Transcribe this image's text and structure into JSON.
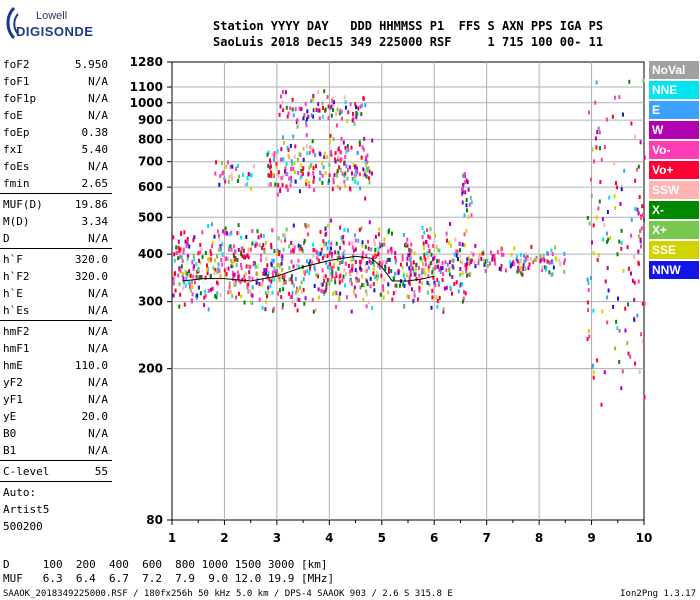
{
  "logo": {
    "line1": "Lowell",
    "line2": "DIGISONDE"
  },
  "header": {
    "line1": "Station YYYY DAY   DDD HHMMSS P1  FFS S AXN PPS IGA PS",
    "line2": "SaoLuis 2018 Dec15 349 225000 RSF     1 715 100 00- 11"
  },
  "params": {
    "group1": [
      {
        "k": "foF2",
        "v": "5.950"
      },
      {
        "k": "foF1",
        "v": "N/A"
      },
      {
        "k": "foF1p",
        "v": "N/A"
      },
      {
        "k": "foE",
        "v": "N/A"
      },
      {
        "k": "foEp",
        "v": "0.38"
      },
      {
        "k": "fxI",
        "v": "5.40"
      },
      {
        "k": "foEs",
        "v": "N/A"
      },
      {
        "k": "fmin",
        "v": "2.65"
      }
    ],
    "group2": [
      {
        "k": "MUF(D)",
        "v": "19.86"
      },
      {
        "k": "M(D)",
        "v": "3.34"
      },
      {
        "k": "D",
        "v": "N/A"
      }
    ],
    "group3": [
      {
        "k": "h`F",
        "v": "320.0"
      },
      {
        "k": "h`F2",
        "v": "320.0"
      },
      {
        "k": "h`E",
        "v": "N/A"
      },
      {
        "k": "h`Es",
        "v": "N/A"
      }
    ],
    "group4": [
      {
        "k": "hmF2",
        "v": "N/A"
      },
      {
        "k": "hmF1",
        "v": "N/A"
      },
      {
        "k": "hmE",
        "v": "110.0"
      },
      {
        "k": "yF2",
        "v": "N/A"
      },
      {
        "k": "yF1",
        "v": "N/A"
      },
      {
        "k": "yE",
        "v": "20.0"
      },
      {
        "k": "B0",
        "v": "N/A"
      },
      {
        "k": "B1",
        "v": "N/A"
      }
    ],
    "group5": [
      {
        "k": "C-level",
        "v": "55"
      }
    ],
    "auto": [
      "Auto:",
      "Artist5",
      "500200"
    ]
  },
  "legend": [
    {
      "label": "NoVal",
      "color": "#a0a0a0"
    },
    {
      "label": "NNE",
      "color": "#00e5ee"
    },
    {
      "label": "E",
      "color": "#3ca0ff"
    },
    {
      "label": "W",
      "color": "#b000b0"
    },
    {
      "label": "Vo-",
      "color": "#ff3cb4"
    },
    {
      "label": "Vo+",
      "color": "#ff0033"
    },
    {
      "label": "SSW",
      "color": "#ffb4b4"
    },
    {
      "label": "X-",
      "color": "#008800"
    },
    {
      "label": "X+",
      "color": "#78c850"
    },
    {
      "label": "SSE",
      "color": "#d2d200"
    },
    {
      "label": "NNW",
      "color": "#1414e6"
    }
  ],
  "footer": {
    "d_row": "D     100  200  400  600  800 1000 1500 3000 [km]",
    "muf_row": "MUF   6.3  6.4  6.7  7.2  7.9  9.0 12.0 19.9 [MHz]",
    "file_line": "SAAOK_2018349225000.RSF / 180fx256h 50 kHz 5.0 km / DPS-4 SAAOK 903 / 2.6 S 315.8 E",
    "version": "Ion2Png 1.3.17"
  },
  "chart_data": {
    "type": "scatter",
    "xlim": [
      1,
      10
    ],
    "ylim": [
      80,
      1280
    ],
    "xticks": [
      "1",
      "2",
      "3",
      "4",
      "5",
      "6",
      "7",
      "8",
      "9",
      "10"
    ],
    "yticks": [
      {
        "v": 80,
        "label": "80"
      },
      {
        "v": 200,
        "label": "200"
      },
      {
        "v": 300,
        "label": "300"
      },
      {
        "v": 400,
        "label": "400"
      },
      {
        "v": 500,
        "label": "500"
      },
      {
        "v": 600,
        "label": "600"
      },
      {
        "v": 700,
        "label": "700"
      },
      {
        "v": 800,
        "label": "800"
      },
      {
        "v": 900,
        "label": "900"
      },
      {
        "v": 1000,
        "label": "1000"
      },
      {
        "v": 1100,
        "label": "1100"
      },
      {
        "v": 1280,
        "label": "1280"
      }
    ],
    "y_scale": "log",
    "grid": true,
    "xlabel": "",
    "ylabel": "",
    "trace": {
      "color": "#000000",
      "points": [
        [
          1.2,
          340
        ],
        [
          1.6,
          345
        ],
        [
          2.0,
          345
        ],
        [
          2.5,
          340
        ],
        [
          3.0,
          350
        ],
        [
          3.5,
          370
        ],
        [
          4.0,
          385
        ],
        [
          4.5,
          395
        ],
        [
          4.8,
          390
        ],
        [
          5.0,
          370
        ],
        [
          5.2,
          340
        ],
        [
          5.5,
          340
        ],
        [
          5.8,
          345
        ],
        [
          6.0,
          350
        ]
      ]
    },
    "clusters": [
      {
        "x": [
          1.0,
          6.6
        ],
        "y": [
          280,
          500
        ],
        "n": 900
      },
      {
        "x": [
          2.8,
          4.8
        ],
        "y": [
          560,
          850
        ],
        "n": 220
      },
      {
        "x": [
          3.0,
          4.7
        ],
        "y": [
          850,
          1110
        ],
        "n": 90
      },
      {
        "x": [
          6.6,
          8.5
        ],
        "y": [
          350,
          430
        ],
        "n": 120
      },
      {
        "x": [
          8.9,
          10.0
        ],
        "y": [
          150,
          1280
        ],
        "n": 140
      },
      {
        "x": [
          1.8,
          2.6
        ],
        "y": [
          580,
          720
        ],
        "n": 30
      },
      {
        "x": [
          6.5,
          6.7
        ],
        "y": [
          480,
          700
        ],
        "n": 25
      }
    ]
  }
}
